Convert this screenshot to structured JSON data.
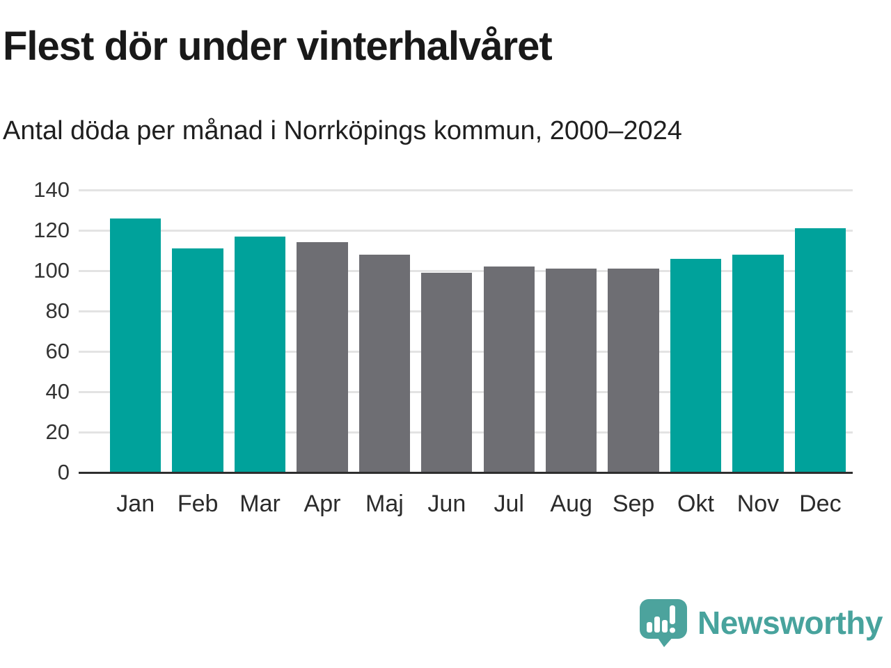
{
  "header": {
    "title": "Flest dör under vinterhalvåret",
    "subtitle": "Antal döda per månad i Norrköpings kommun, 2000–2024"
  },
  "chart_data": {
    "type": "bar",
    "title": "Flest dör under vinterhalvåret",
    "subtitle": "Antal döda per månad i Norrköpings kommun, 2000–2024",
    "categories": [
      "Jan",
      "Feb",
      "Mar",
      "Apr",
      "Maj",
      "Jun",
      "Jul",
      "Aug",
      "Sep",
      "Okt",
      "Nov",
      "Dec"
    ],
    "values": [
      126,
      111,
      117,
      114,
      108,
      99,
      102,
      101,
      101,
      106,
      108,
      121
    ],
    "bar_roles": [
      "highlight",
      "highlight",
      "highlight",
      "muted",
      "muted",
      "muted",
      "muted",
      "muted",
      "muted",
      "highlight",
      "highlight",
      "highlight"
    ],
    "palette": {
      "highlight": "#00a29b",
      "muted": "#6e6e73"
    },
    "xlabel": "",
    "ylabel": "",
    "ylim": [
      0,
      140
    ],
    "yticks": [
      0,
      20,
      40,
      60,
      80,
      100,
      120,
      140
    ],
    "grid": true,
    "gridline_color": "#e3e3e3",
    "baseline_color": "#2e2e2e",
    "legend": "none"
  },
  "footer": {
    "brand": "Newsworthy",
    "logo_icon": "newsworthy-speech-bubble-bars-icon",
    "brand_color": "#48a39d",
    "logo_bubble_color": "#4ca39d"
  }
}
